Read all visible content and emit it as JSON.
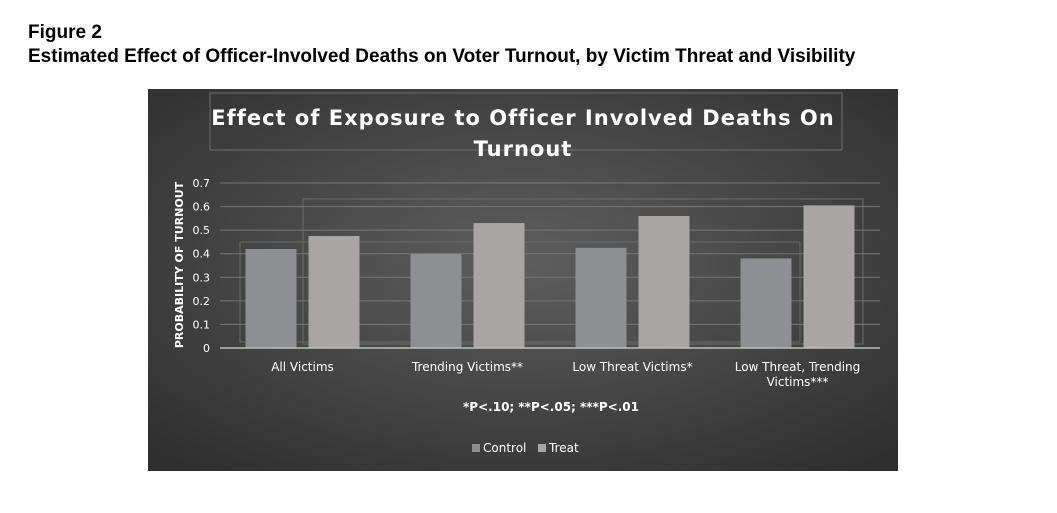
{
  "figure": {
    "label": "Figure 2",
    "title": "Estimated Effect of Officer-Involved Deaths on Voter Turnout, by Victim Threat and Visibility"
  },
  "chart_data": {
    "type": "bar",
    "title_line1": "Effect of Exposure to Officer Involved Deaths On",
    "title_line2": "Turnout",
    "ylabel": "PROBABILITY OF TURNOUT",
    "xlabel": "",
    "ylim": [
      0,
      0.7
    ],
    "yticks": [
      "0",
      "0.1",
      "0.2",
      "0.3",
      "0.4",
      "0.5",
      "0.6",
      "0.7"
    ],
    "categories": [
      "All Victims",
      "Trending Victims**",
      "Low Threat Victims*",
      "Low Threat, Trending Victims***"
    ],
    "series": [
      {
        "name": "Control",
        "values": [
          0.42,
          0.4,
          0.425,
          0.38
        ]
      },
      {
        "name": "Treat",
        "values": [
          0.475,
          0.53,
          0.56,
          0.605
        ]
      }
    ],
    "annotation": "*P<.10; **P<.05; ***P<.01",
    "grid": true,
    "legend_position": "bottom",
    "colors": {
      "background": "#444444",
      "control": "#8e8f92",
      "treat": "#a9a5a4",
      "text": "#ffffff"
    }
  }
}
